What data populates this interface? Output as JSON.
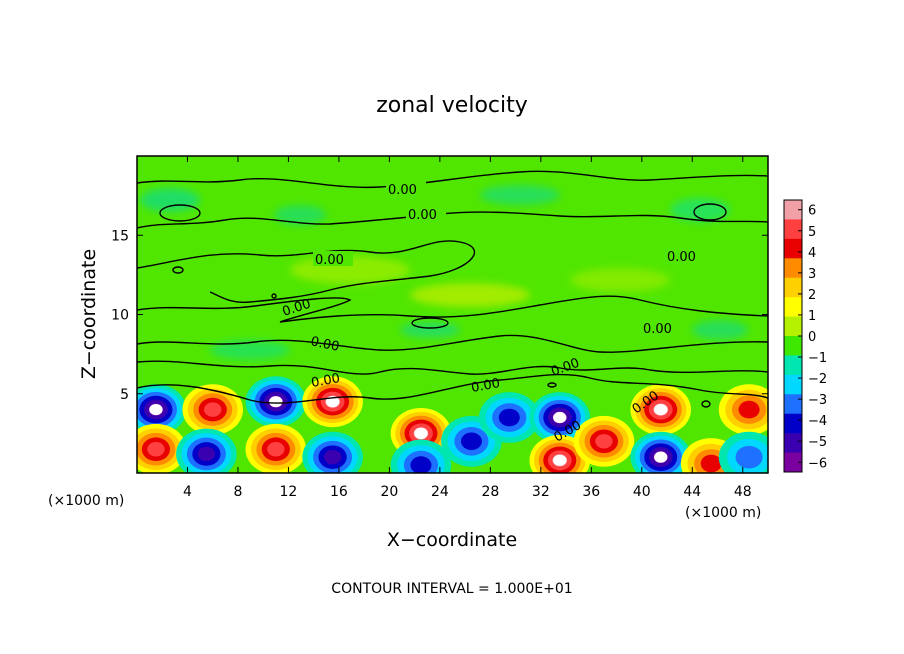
{
  "chart_data": {
    "type": "heatmap",
    "title": "zonal velocity",
    "xlabel": "X−coordinate",
    "ylabel": "Z−coordinate",
    "x_unit": "(×1000 m)",
    "y_unit": "(×1000 m)",
    "xlim": [
      0,
      50
    ],
    "ylim": [
      0,
      20
    ],
    "x_ticks": [
      4,
      8,
      12,
      16,
      20,
      24,
      28,
      32,
      36,
      40,
      44,
      48
    ],
    "y_ticks": [
      5,
      10,
      15
    ],
    "colorbar": {
      "ticks": [
        6,
        5,
        4,
        3,
        2,
        1,
        0,
        -1,
        -2,
        -3,
        -4,
        -5,
        -6
      ],
      "tick_labels": [
        "6",
        "5",
        "4",
        "3",
        "2",
        "1",
        "0",
        "−1",
        "−2",
        "−3",
        "−4",
        "−5",
        "−6"
      ],
      "colors": [
        "#f2a0a8",
        "#ff4040",
        "#e80000",
        "#ff8c00",
        "#ffd000",
        "#ffff00",
        "#b4f000",
        "#3ee800",
        "#00e6b0",
        "#00d8ff",
        "#1e70ff",
        "#0000c8",
        "#3a00b0",
        "#7a00a0"
      ]
    },
    "contour_level": "0.00",
    "contour_labels": [
      "0.00",
      "0.00",
      "0.00",
      "0.00",
      "0.00",
      "0.00",
      "0.00",
      "0.00",
      "0.00",
      "0.00",
      "0.00",
      "0.00"
    ],
    "footer": "CONTOUR INTERVAL = 1.000E+01",
    "cells": [
      {
        "x": 1.5,
        "z": 4.0,
        "v": -6
      },
      {
        "x": 1.5,
        "z": 1.5,
        "v": 5
      },
      {
        "x": 6.0,
        "z": 4.0,
        "v": 5
      },
      {
        "x": 5.5,
        "z": 1.2,
        "v": -5
      },
      {
        "x": 11.0,
        "z": 4.5,
        "v": -6
      },
      {
        "x": 11.0,
        "z": 1.5,
        "v": 5
      },
      {
        "x": 15.5,
        "z": 4.5,
        "v": 6
      },
      {
        "x": 15.5,
        "z": 1.0,
        "v": -5
      },
      {
        "x": 22.5,
        "z": 2.5,
        "v": 6
      },
      {
        "x": 22.5,
        "z": 0.5,
        "v": -4
      },
      {
        "x": 26.5,
        "z": 2.0,
        "v": -4
      },
      {
        "x": 29.5,
        "z": 3.5,
        "v": -4
      },
      {
        "x": 33.5,
        "z": 3.5,
        "v": -6
      },
      {
        "x": 33.5,
        "z": 0.8,
        "v": 6
      },
      {
        "x": 37.0,
        "z": 2.0,
        "v": 5
      },
      {
        "x": 41.5,
        "z": 4.0,
        "v": 6
      },
      {
        "x": 41.5,
        "z": 1.0,
        "v": -6
      },
      {
        "x": 45.5,
        "z": 0.6,
        "v": 4
      },
      {
        "x": 48.5,
        "z": 4.0,
        "v": 4
      },
      {
        "x": 48.5,
        "z": 1.0,
        "v": -3
      }
    ]
  }
}
